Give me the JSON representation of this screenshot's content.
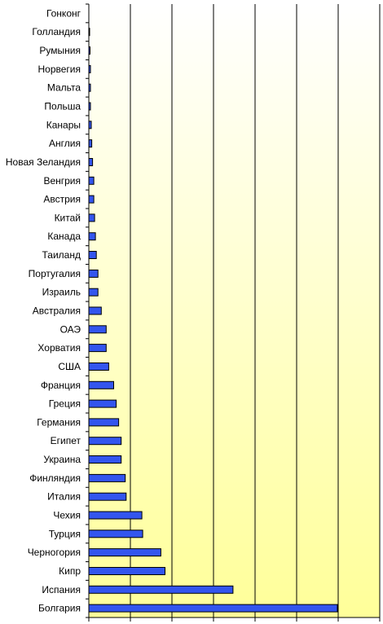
{
  "chart_data": {
    "type": "bar",
    "orientation": "horizontal",
    "title": "",
    "xlabel": "",
    "ylabel": "",
    "xlim": [
      0,
      30
    ],
    "grid": true,
    "legend": "none",
    "colors": {
      "bar": "#3355ee",
      "bar_stroke": "#000000",
      "plot_gradient_top": "#ffffff",
      "plot_gradient_bottom": "#ffff99"
    },
    "categories": [
      "Гонконг",
      "Голландия",
      "Румыния",
      "Норвегия",
      "Мальта",
      "Польша",
      "Канары",
      "Англия",
      "Новая Зеландия",
      "Венгрия",
      "Австрия",
      "Китай",
      "Канада",
      "Таиланд",
      "Португалия",
      "Израиль",
      "Австралия",
      "ОАЭ",
      "Хорватия",
      "США",
      "Франция",
      "Греция",
      "Германия",
      "Египет",
      "Украина",
      "Финляндия",
      "Италия",
      "Чехия",
      "Турция",
      "Черногория",
      "Кипр",
      "Испания",
      "Болгария"
    ],
    "values": [
      0,
      0.1,
      0.15,
      0.2,
      0.2,
      0.2,
      0.3,
      0.35,
      0.45,
      0.6,
      0.6,
      0.7,
      0.8,
      0.9,
      1.1,
      1.1,
      1.5,
      2.1,
      2.1,
      2.4,
      3.0,
      3.3,
      3.6,
      3.9,
      3.9,
      4.4,
      4.5,
      6.4,
      6.5,
      8.7,
      9.2,
      17.4,
      30.0
    ]
  }
}
